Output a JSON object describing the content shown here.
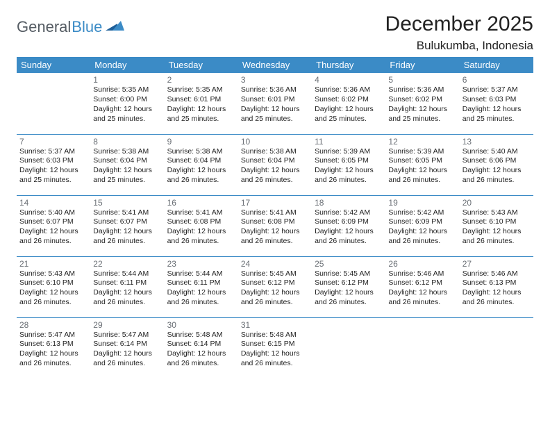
{
  "brand": {
    "part1": "General",
    "part2": "Blue"
  },
  "title": "December 2025",
  "location": "Bulukumba, Indonesia",
  "colors": {
    "header_bg": "#3b8bc6",
    "header_text": "#ffffff",
    "rule": "#3b8bc6",
    "daynum": "#6a6f75",
    "body_text": "#222222",
    "page_bg": "#ffffff"
  },
  "weekdays": [
    "Sunday",
    "Monday",
    "Tuesday",
    "Wednesday",
    "Thursday",
    "Friday",
    "Saturday"
  ],
  "weeks": [
    [
      null,
      {
        "n": "1",
        "sr": "5:35 AM",
        "ss": "6:00 PM",
        "dl": "12 hours and 25 minutes."
      },
      {
        "n": "2",
        "sr": "5:35 AM",
        "ss": "6:01 PM",
        "dl": "12 hours and 25 minutes."
      },
      {
        "n": "3",
        "sr": "5:36 AM",
        "ss": "6:01 PM",
        "dl": "12 hours and 25 minutes."
      },
      {
        "n": "4",
        "sr": "5:36 AM",
        "ss": "6:02 PM",
        "dl": "12 hours and 25 minutes."
      },
      {
        "n": "5",
        "sr": "5:36 AM",
        "ss": "6:02 PM",
        "dl": "12 hours and 25 minutes."
      },
      {
        "n": "6",
        "sr": "5:37 AM",
        "ss": "6:03 PM",
        "dl": "12 hours and 25 minutes."
      }
    ],
    [
      {
        "n": "7",
        "sr": "5:37 AM",
        "ss": "6:03 PM",
        "dl": "12 hours and 25 minutes."
      },
      {
        "n": "8",
        "sr": "5:38 AM",
        "ss": "6:04 PM",
        "dl": "12 hours and 25 minutes."
      },
      {
        "n": "9",
        "sr": "5:38 AM",
        "ss": "6:04 PM",
        "dl": "12 hours and 26 minutes."
      },
      {
        "n": "10",
        "sr": "5:38 AM",
        "ss": "6:04 PM",
        "dl": "12 hours and 26 minutes."
      },
      {
        "n": "11",
        "sr": "5:39 AM",
        "ss": "6:05 PM",
        "dl": "12 hours and 26 minutes."
      },
      {
        "n": "12",
        "sr": "5:39 AM",
        "ss": "6:05 PM",
        "dl": "12 hours and 26 minutes."
      },
      {
        "n": "13",
        "sr": "5:40 AM",
        "ss": "6:06 PM",
        "dl": "12 hours and 26 minutes."
      }
    ],
    [
      {
        "n": "14",
        "sr": "5:40 AM",
        "ss": "6:07 PM",
        "dl": "12 hours and 26 minutes."
      },
      {
        "n": "15",
        "sr": "5:41 AM",
        "ss": "6:07 PM",
        "dl": "12 hours and 26 minutes."
      },
      {
        "n": "16",
        "sr": "5:41 AM",
        "ss": "6:08 PM",
        "dl": "12 hours and 26 minutes."
      },
      {
        "n": "17",
        "sr": "5:41 AM",
        "ss": "6:08 PM",
        "dl": "12 hours and 26 minutes."
      },
      {
        "n": "18",
        "sr": "5:42 AM",
        "ss": "6:09 PM",
        "dl": "12 hours and 26 minutes."
      },
      {
        "n": "19",
        "sr": "5:42 AM",
        "ss": "6:09 PM",
        "dl": "12 hours and 26 minutes."
      },
      {
        "n": "20",
        "sr": "5:43 AM",
        "ss": "6:10 PM",
        "dl": "12 hours and 26 minutes."
      }
    ],
    [
      {
        "n": "21",
        "sr": "5:43 AM",
        "ss": "6:10 PM",
        "dl": "12 hours and 26 minutes."
      },
      {
        "n": "22",
        "sr": "5:44 AM",
        "ss": "6:11 PM",
        "dl": "12 hours and 26 minutes."
      },
      {
        "n": "23",
        "sr": "5:44 AM",
        "ss": "6:11 PM",
        "dl": "12 hours and 26 minutes."
      },
      {
        "n": "24",
        "sr": "5:45 AM",
        "ss": "6:12 PM",
        "dl": "12 hours and 26 minutes."
      },
      {
        "n": "25",
        "sr": "5:45 AM",
        "ss": "6:12 PM",
        "dl": "12 hours and 26 minutes."
      },
      {
        "n": "26",
        "sr": "5:46 AM",
        "ss": "6:12 PM",
        "dl": "12 hours and 26 minutes."
      },
      {
        "n": "27",
        "sr": "5:46 AM",
        "ss": "6:13 PM",
        "dl": "12 hours and 26 minutes."
      }
    ],
    [
      {
        "n": "28",
        "sr": "5:47 AM",
        "ss": "6:13 PM",
        "dl": "12 hours and 26 minutes."
      },
      {
        "n": "29",
        "sr": "5:47 AM",
        "ss": "6:14 PM",
        "dl": "12 hours and 26 minutes."
      },
      {
        "n": "30",
        "sr": "5:48 AM",
        "ss": "6:14 PM",
        "dl": "12 hours and 26 minutes."
      },
      {
        "n": "31",
        "sr": "5:48 AM",
        "ss": "6:15 PM",
        "dl": "12 hours and 26 minutes."
      },
      null,
      null,
      null
    ]
  ],
  "labels": {
    "sunrise": "Sunrise:",
    "sunset": "Sunset:",
    "daylight": "Daylight:"
  }
}
